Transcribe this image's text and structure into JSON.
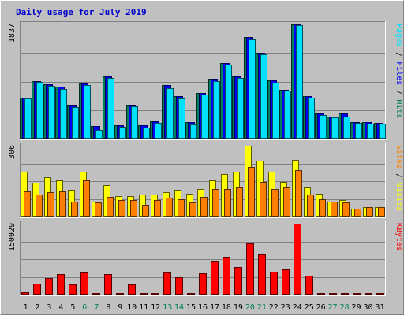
{
  "chart_data": {
    "type": "bar",
    "title": "Daily usage for July 2019",
    "categories": [
      "1",
      "2",
      "3",
      "4",
      "5",
      "6",
      "7",
      "8",
      "9",
      "10",
      "11",
      "12",
      "13",
      "14",
      "15",
      "16",
      "17",
      "18",
      "19",
      "20",
      "21",
      "22",
      "23",
      "24",
      "25",
      "26",
      "27",
      "28",
      "29",
      "30",
      "31"
    ],
    "weekend_days": [
      6,
      7,
      13,
      14,
      20,
      21,
      27,
      28
    ],
    "panels": [
      {
        "name": "hits-files-pages",
        "max_label": "1837",
        "ylim": [
          0,
          1837
        ],
        "grid": true,
        "legend_parts": [
          {
            "text": "Pages",
            "color": "#00e0ff"
          },
          {
            "text": " / ",
            "color": "#000000"
          },
          {
            "text": "Files",
            "color": "#0000ff"
          },
          {
            "text": " / ",
            "color": "#000000"
          },
          {
            "text": "Hits",
            "color": "#00805c"
          }
        ],
        "series": [
          {
            "name": "Hits",
            "color": "#00805c",
            "values": [
              660,
              930,
              880,
              830,
              540,
              890,
              200,
              1000,
              220,
              550,
              210,
              280,
              860,
              680,
              270,
              740,
              960,
              1220,
              1000,
              1630,
              1380,
              940,
              790,
              1837,
              680,
              400,
              360,
              400,
              270,
              260,
              250
            ]
          },
          {
            "name": "Files",
            "color": "#0000ff",
            "values": [
              660,
              930,
              880,
              830,
              540,
              890,
              200,
              1000,
              220,
              550,
              210,
              280,
              860,
              680,
              270,
              740,
              960,
              1220,
              1000,
              1630,
              1380,
              940,
              790,
              1837,
              680,
              400,
              360,
              400,
              270,
              260,
              250
            ]
          },
          {
            "name": "Pages",
            "color": "#00e0ff",
            "values": [
              640,
              910,
              850,
              800,
              510,
              860,
              140,
              970,
              190,
              520,
              180,
              250,
              810,
              650,
              230,
              710,
              930,
              1190,
              970,
              1590,
              1350,
              900,
              770,
              1820,
              660,
              380,
              340,
              360,
              250,
              240,
              240
            ]
          }
        ]
      },
      {
        "name": "visits-sites",
        "max_label": "306",
        "ylim": [
          0,
          306
        ],
        "grid": true,
        "legend_parts": [
          {
            "text": "Sites",
            "color": "#ff8000"
          },
          {
            "text": " / ",
            "color": "#000000"
          },
          {
            "text": "Visits",
            "color": "#ffff00"
          }
        ],
        "series": [
          {
            "name": "Visits",
            "color": "#ffff00",
            "values": [
              195,
              145,
              170,
              155,
              115,
              195,
              65,
              135,
              90,
              90,
              95,
              95,
              105,
              115,
              100,
              120,
              155,
              185,
              195,
              306,
              240,
              195,
              150,
              245,
              125,
              100,
              65,
              70,
              35,
              40,
              40
            ]
          },
          {
            "name": "Sites",
            "color": "#ff8000",
            "values": [
              110,
              95,
              105,
              110,
              65,
              155,
              60,
              85,
              70,
              70,
              50,
              70,
              80,
              75,
              60,
              85,
              120,
              120,
              125,
              215,
              150,
              120,
              125,
              200,
              95,
              75,
              65,
              60,
              35,
              40,
              40
            ]
          }
        ]
      },
      {
        "name": "kbytes",
        "max_label": "150929",
        "ylim": [
          0,
          150929
        ],
        "grid": true,
        "legend_parts": [
          {
            "text": "KBytes",
            "color": "#ff0000"
          }
        ],
        "series": [
          {
            "name": "KBytes",
            "color": "#ff0000",
            "values": [
              5500,
              24000,
              36000,
              44000,
              22000,
              47000,
              1000,
              44000,
              1000,
              21000,
              1000,
              1000,
              47000,
              37000,
              1000,
              45000,
              70000,
              81000,
              59000,
              109000,
              86000,
              49000,
              53000,
              150929,
              41000,
              1000,
              1000,
              1000,
              3000,
              1000,
              1000
            ]
          }
        ]
      }
    ]
  }
}
